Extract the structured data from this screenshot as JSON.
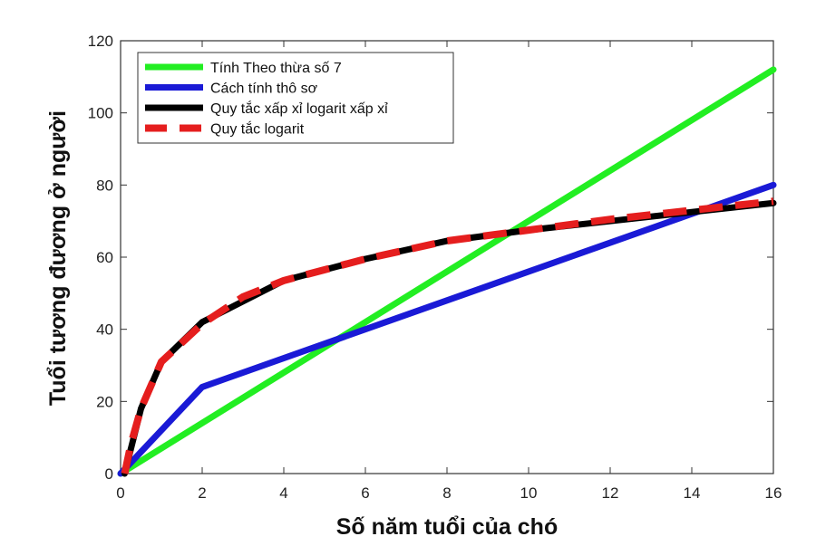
{
  "chart_data": {
    "type": "line",
    "xlabel": "Số năm tuổi của chó",
    "ylabel": "Tuổi tương đương ở người",
    "xlim": [
      0,
      16
    ],
    "ylim": [
      0,
      120
    ],
    "xticks": [
      0,
      2,
      4,
      6,
      8,
      10,
      12,
      14,
      16
    ],
    "yticks": [
      0,
      20,
      40,
      60,
      80,
      100,
      120
    ],
    "legend_position": "top-left",
    "grid": false,
    "series": [
      {
        "name": "Tính Theo thừa số 7",
        "color": "#22ee22",
        "style": "solid",
        "x": [
          0,
          16
        ],
        "y": [
          0,
          112
        ]
      },
      {
        "name": "Cách tính thô sơ",
        "color": "#1a1ad6",
        "style": "solid",
        "x": [
          0,
          2,
          16
        ],
        "y": [
          0,
          24,
          80
        ]
      },
      {
        "name": "Quy tắc xấp xỉ logarit xấp xỉ",
        "color": "#000000",
        "style": "solid",
        "x": [
          0.1,
          0.5,
          1,
          2,
          4,
          6,
          8,
          10,
          12,
          14,
          16
        ],
        "y": [
          0,
          18,
          31,
          42,
          53.5,
          59.5,
          64.5,
          67.5,
          70,
          72.5,
          75
        ]
      },
      {
        "name": "Quy tắc logarit",
        "color": "#e51e1e",
        "style": "dashed",
        "x": [
          0.1,
          0.25,
          0.5,
          1,
          2,
          3,
          4,
          6,
          8,
          10,
          12,
          14,
          16
        ],
        "y": [
          0,
          8,
          18,
          31,
          41.5,
          49,
          53.5,
          59.5,
          64.5,
          67.5,
          70.5,
          73,
          75.5
        ]
      }
    ]
  }
}
